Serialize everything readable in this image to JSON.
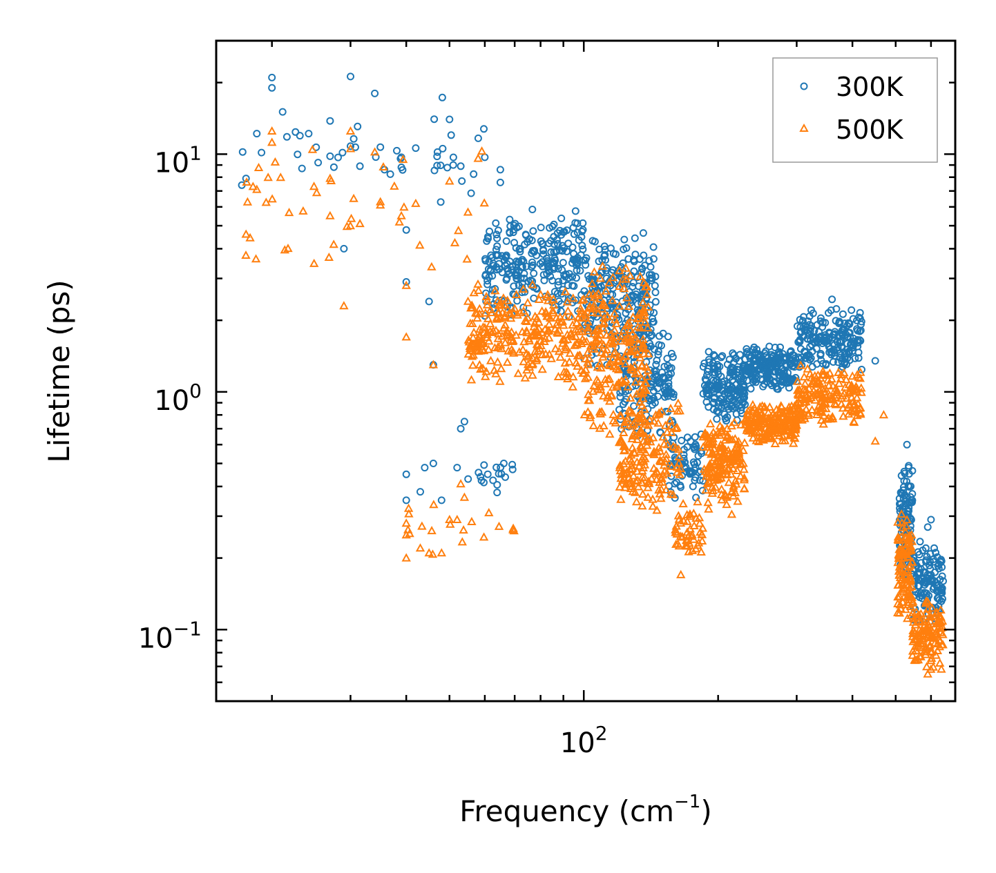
{
  "chart_data": {
    "type": "scatter",
    "title": "",
    "xscale": "log",
    "yscale": "log",
    "xlabel": {
      "main": "Frequency (cm",
      "sup": "−1",
      "end": ")"
    },
    "ylabel": "Lifetime (ps)",
    "xlim": [
      15,
      680
    ],
    "ylim": [
      0.05,
      30
    ],
    "x_major_ticks": [
      {
        "value": 100,
        "base": "10",
        "exp": "2"
      }
    ],
    "y_major_ticks": [
      {
        "value": 10,
        "base": "10",
        "exp": "1"
      },
      {
        "value": 1,
        "base": "10",
        "exp": "0"
      },
      {
        "value": 0.1,
        "base": "10",
        "exp": "−1"
      }
    ],
    "legend": {
      "position": "upper-right",
      "frame": true
    },
    "series": [
      {
        "name": "300K",
        "marker": "circle",
        "color": "#1f77b4",
        "clusters": [
          {
            "x": [
              17,
              60
            ],
            "y": [
              5,
              20
            ],
            "n": 40
          },
          {
            "x": [
              60,
              100
            ],
            "y": [
              2,
              6
            ],
            "n": 260
          },
          {
            "x": [
              100,
              145
            ],
            "y": [
              1.2,
              5
            ],
            "n": 240
          },
          {
            "x": [
              120,
              160
            ],
            "y": [
              0.6,
              2
            ],
            "n": 150
          },
          {
            "x": [
              155,
              185
            ],
            "y": [
              0.35,
              0.7
            ],
            "n": 70
          },
          {
            "x": [
              185,
              230
            ],
            "y": [
              0.7,
              1.5
            ],
            "n": 170
          },
          {
            "x": [
              230,
              300
            ],
            "y": [
              1.0,
              1.6
            ],
            "n": 200
          },
          {
            "x": [
              300,
              420
            ],
            "y": [
              1.2,
              2.3
            ],
            "n": 190
          },
          {
            "x": [
              55,
              70
            ],
            "y": [
              0.35,
              0.55
            ],
            "n": 18
          },
          {
            "x": [
              510,
              545
            ],
            "y": [
              0.15,
              0.55
            ],
            "n": 110
          },
          {
            "x": [
              545,
              640
            ],
            "y": [
              0.1,
              0.25
            ],
            "n": 120
          }
        ],
        "points": [
          {
            "x": 17.5,
            "y": 7.9
          },
          {
            "x": 18.5,
            "y": 12.2
          },
          {
            "x": 20,
            "y": 21
          },
          {
            "x": 20,
            "y": 19
          },
          {
            "x": 27,
            "y": 13.8
          },
          {
            "x": 27,
            "y": 9.8
          },
          {
            "x": 30,
            "y": 21.2
          },
          {
            "x": 30,
            "y": 10.8
          },
          {
            "x": 30.5,
            "y": 11.6
          },
          {
            "x": 31.5,
            "y": 8.9
          },
          {
            "x": 29,
            "y": 4
          },
          {
            "x": 34,
            "y": 18
          },
          {
            "x": 35,
            "y": 10.7
          },
          {
            "x": 39,
            "y": 9.7
          },
          {
            "x": 39,
            "y": 8.8
          },
          {
            "x": 42,
            "y": 10.6
          },
          {
            "x": 47,
            "y": 10.2
          },
          {
            "x": 50,
            "y": 14
          },
          {
            "x": 53,
            "y": 8.9
          },
          {
            "x": 60,
            "y": 9.7
          },
          {
            "x": 65,
            "y": 8.6
          },
          {
            "x": 65,
            "y": 7.6
          },
          {
            "x": 40,
            "y": 4.8
          },
          {
            "x": 40,
            "y": 2.9
          },
          {
            "x": 45,
            "y": 2.4
          },
          {
            "x": 46,
            "y": 1.3
          },
          {
            "x": 53,
            "y": 0.7
          },
          {
            "x": 54,
            "y": 0.75
          },
          {
            "x": 52,
            "y": 0.48
          },
          {
            "x": 48,
            "y": 0.35
          },
          {
            "x": 43,
            "y": 0.38
          },
          {
            "x": 40,
            "y": 0.45
          },
          {
            "x": 40,
            "y": 0.35
          },
          {
            "x": 46,
            "y": 0.5
          },
          {
            "x": 44,
            "y": 0.48
          },
          {
            "x": 360,
            "y": 2.45
          },
          {
            "x": 450,
            "y": 1.35
          },
          {
            "x": 530,
            "y": 0.6
          },
          {
            "x": 600,
            "y": 0.29
          },
          {
            "x": 590,
            "y": 0.27
          },
          {
            "x": 610,
            "y": 0.22
          },
          {
            "x": 600,
            "y": 0.17
          }
        ]
      },
      {
        "name": "500K",
        "marker": "triangle",
        "color": "#ff7f0e",
        "clusters": [
          {
            "x": [
              17,
              60
            ],
            "y": [
              2.5,
              12.5
            ],
            "n": 40
          },
          {
            "x": [
              55,
              100
            ],
            "y": [
              1,
              3
            ],
            "n": 280
          },
          {
            "x": [
              100,
              140
            ],
            "y": [
              0.6,
              3.5
            ],
            "n": 250
          },
          {
            "x": [
              120,
              165
            ],
            "y": [
              0.3,
              1.0
            ],
            "n": 170
          },
          {
            "x": [
              160,
              185
            ],
            "y": [
              0.18,
              0.35
            ],
            "n": 50
          },
          {
            "x": [
              185,
              230
            ],
            "y": [
              0.3,
              0.8
            ],
            "n": 180
          },
          {
            "x": [
              230,
              300
            ],
            "y": [
              0.6,
              0.9
            ],
            "n": 200
          },
          {
            "x": [
              300,
              420
            ],
            "y": [
              0.7,
              1.3
            ],
            "n": 180
          },
          {
            "x": [
              40,
              70
            ],
            "y": [
              0.2,
              0.35
            ],
            "n": 18
          },
          {
            "x": [
              505,
              545
            ],
            "y": [
              0.1,
              0.32
            ],
            "n": 110
          },
          {
            "x": [
              545,
              640
            ],
            "y": [
              0.065,
              0.14
            ],
            "n": 120
          }
        ],
        "points": [
          {
            "x": 17.5,
            "y": 4.6
          },
          {
            "x": 18.5,
            "y": 7.1
          },
          {
            "x": 20,
            "y": 12.5
          },
          {
            "x": 20,
            "y": 11.2
          },
          {
            "x": 27,
            "y": 7.9
          },
          {
            "x": 27,
            "y": 5.5
          },
          {
            "x": 29,
            "y": 2.3
          },
          {
            "x": 30,
            "y": 12.5
          },
          {
            "x": 30.5,
            "y": 6.5
          },
          {
            "x": 31.5,
            "y": 5.1
          },
          {
            "x": 34,
            "y": 10.2
          },
          {
            "x": 35,
            "y": 6.3
          },
          {
            "x": 35,
            "y": 6.1
          },
          {
            "x": 39,
            "y": 5.5
          },
          {
            "x": 42,
            "y": 6.2
          },
          {
            "x": 40,
            "y": 2.8
          },
          {
            "x": 40,
            "y": 1.7
          },
          {
            "x": 50,
            "y": 7.7
          },
          {
            "x": 55,
            "y": 5.7
          },
          {
            "x": 46,
            "y": 1.3
          },
          {
            "x": 40,
            "y": 0.28
          },
          {
            "x": 40,
            "y": 0.25
          },
          {
            "x": 40,
            "y": 0.2
          },
          {
            "x": 43,
            "y": 0.22
          },
          {
            "x": 45,
            "y": 0.21
          },
          {
            "x": 48,
            "y": 0.21
          },
          {
            "x": 50,
            "y": 0.29
          },
          {
            "x": 52,
            "y": 0.29
          },
          {
            "x": 54,
            "y": 0.36
          },
          {
            "x": 53,
            "y": 0.41
          },
          {
            "x": 165,
            "y": 0.17
          },
          {
            "x": 210,
            "y": 0.65
          },
          {
            "x": 470,
            "y": 0.8
          },
          {
            "x": 450,
            "y": 0.62
          },
          {
            "x": 600,
            "y": 0.074
          },
          {
            "x": 590,
            "y": 0.065
          }
        ]
      }
    ]
  }
}
